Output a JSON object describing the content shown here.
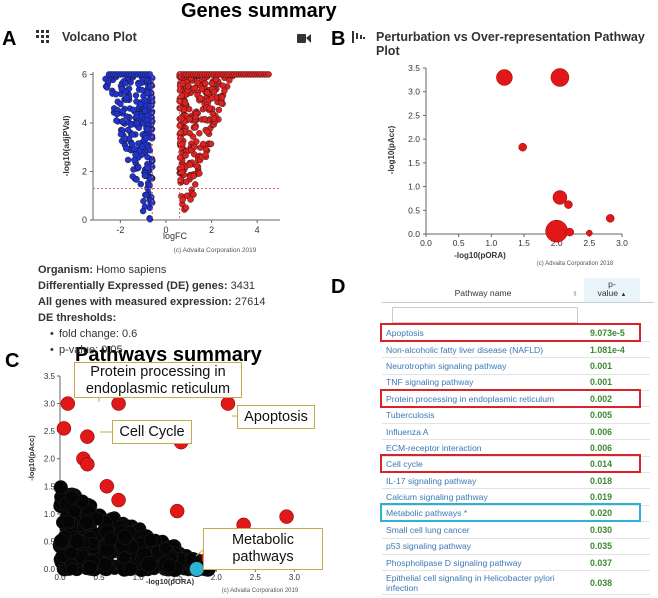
{
  "titles": {
    "genes_summary": "Genes summary",
    "pathways_summary": "Pathways summary"
  },
  "panels": {
    "a": "A",
    "b": "B",
    "c": "C",
    "d": "D"
  },
  "panel_a": {
    "header": "Volcano Plot",
    "grid_icon": "grid-icon",
    "camera_icon": "camera-icon",
    "organism_label": "Organism:",
    "organism_value": "Homo sapiens",
    "de_label": "Differentially Expressed (DE) genes:",
    "de_value": "3431",
    "all_label": "All genes with measured expression:",
    "all_value": "27614",
    "thr_label": "DE thresholds:",
    "thr_fc": "fold change: 0.6",
    "thr_p": "p-value: 0.05"
  },
  "panel_b": {
    "header": "Perturbation vs Over-representation Pathway Plot",
    "chart_icon": "chart-icon"
  },
  "panel_d": {
    "col_name": "Pathway name",
    "col_p": "p-",
    "col_p2": "value",
    "rows": [
      {
        "name": "Apoptosis",
        "p": "9.073e-5"
      },
      {
        "name": "Non-alcoholic fatty liver disease (NAFLD)",
        "p": "1.081e-4"
      },
      {
        "name": "Neurotrophin signaling pathway",
        "p": "0.001"
      },
      {
        "name": "TNF signaling pathway",
        "p": "0.001"
      },
      {
        "name": "Protein processing in endoplasmic reticulum",
        "p": "0.002"
      },
      {
        "name": "Tuberculosis",
        "p": "0.005"
      },
      {
        "name": "Influenza A",
        "p": "0.006"
      },
      {
        "name": "ECM-receptor interaction",
        "p": "0.006"
      },
      {
        "name": "Cell cycle",
        "p": "0.014"
      },
      {
        "name": "IL-17 signaling pathway",
        "p": "0.018"
      },
      {
        "name": "Calcium signaling pathway",
        "p": "0.019"
      },
      {
        "name": "Metabolic pathways *",
        "p": "0.020"
      },
      {
        "name": "Small cell lung cancer",
        "p": "0.030"
      },
      {
        "name": "p53 signaling pathway",
        "p": "0.035"
      },
      {
        "name": "Phospholipase D signaling pathway",
        "p": "0.037"
      },
      {
        "name": "Epithelial cell signaling in Helicobacter pylori infection",
        "p": "0.038"
      }
    ]
  },
  "callouts": {
    "protein": "Protein processing in endoplasmic reticulum",
    "apoptosis": "Apoptosis",
    "cellcycle": "Cell Cycle",
    "metabolic": "Metabolic pathways"
  },
  "chart_data": [
    {
      "type": "scatter",
      "title": "Volcano Plot",
      "xlabel": "logFC",
      "ylabel": "-log10(adjPVal)",
      "xlim": [
        -3.2,
        5
      ],
      "ylim": [
        0,
        6.1
      ],
      "xticks": [
        -2,
        0,
        2,
        4
      ],
      "yticks": [
        0,
        2,
        4,
        6
      ],
      "threshold_lines": {
        "x": [
          -0.6,
          0.6
        ],
        "y": 1.3
      },
      "series": [
        {
          "name": "down-regulated",
          "color": "#2233cc",
          "x_range": [
            -2.5,
            -0.6
          ],
          "y_max": 6
        },
        {
          "name": "up-regulated",
          "color": "#dd2222",
          "x_range": [
            0.6,
            4.5
          ],
          "y_max": 6
        }
      ],
      "credit": "(c) Advaita Corporation 2019"
    },
    {
      "type": "scatter",
      "title": "Perturbation vs Over-representation Pathway Plot",
      "xlabel": "-log10(pORA)",
      "ylabel": "-log10(pAcc)",
      "xlim": [
        0,
        3.0
      ],
      "ylim": [
        0,
        3.5
      ],
      "xticks": [
        "0.0",
        "0.5",
        "1.0",
        "1.5",
        "2.0",
        "2.5",
        "3.0"
      ],
      "yticks": [
        "0.0",
        "0.5",
        "1.0",
        "1.5",
        "2.0",
        "2.5",
        "3.0",
        "3.5"
      ],
      "points": [
        {
          "x": 1.2,
          "y": 3.3,
          "r": 8
        },
        {
          "x": 2.05,
          "y": 3.3,
          "r": 9
        },
        {
          "x": 1.48,
          "y": 1.83,
          "r": 4
        },
        {
          "x": 2.05,
          "y": 0.77,
          "r": 7
        },
        {
          "x": 2.18,
          "y": 0.62,
          "r": 4
        },
        {
          "x": 2.82,
          "y": 0.33,
          "r": 4
        },
        {
          "x": 2.0,
          "y": 0.06,
          "r": 11
        },
        {
          "x": 2.2,
          "y": 0.04,
          "r": 4
        },
        {
          "x": 2.5,
          "y": 0.02,
          "r": 3
        }
      ],
      "color": "#e01818",
      "credit": "(c) Advaita Corporation 2018"
    },
    {
      "type": "scatter",
      "title": "Pathways summary",
      "xlabel": "-log10(pORA)",
      "ylabel": "-log10(pAcc)",
      "xlim": [
        0,
        3.2
      ],
      "ylim": [
        0,
        3.5
      ],
      "xticks": [
        "0.0",
        "0.5",
        "1.0",
        "1.5",
        "2.0",
        "2.5",
        "3.0"
      ],
      "yticks": [
        "0.0",
        "0.5",
        "1.0",
        "1.5",
        "2.0",
        "2.5",
        "3.0",
        "3.5"
      ],
      "red_points": [
        {
          "x": 0.1,
          "y": 3.0
        },
        {
          "x": 0.75,
          "y": 3.0
        },
        {
          "x": 1.4,
          "y": 3.3
        },
        {
          "x": 2.15,
          "y": 3.0
        },
        {
          "x": 0.05,
          "y": 2.55
        },
        {
          "x": 0.35,
          "y": 2.4
        },
        {
          "x": 1.55,
          "y": 2.3
        },
        {
          "x": 0.3,
          "y": 2.0
        },
        {
          "x": 0.35,
          "y": 1.9
        },
        {
          "x": 0.6,
          "y": 1.5
        },
        {
          "x": 0.75,
          "y": 1.25
        },
        {
          "x": 1.5,
          "y": 1.05
        },
        {
          "x": 2.35,
          "y": 0.8
        },
        {
          "x": 2.9,
          "y": 0.95
        },
        {
          "x": 1.9,
          "y": 0.2
        }
      ],
      "highlight_points": [
        {
          "x": 1.75,
          "y": 0.0,
          "color": "#2bb3d6"
        }
      ],
      "black_cluster": "dense cluster at low values",
      "credit": "(c) Advaita Corporation 2019"
    }
  ]
}
